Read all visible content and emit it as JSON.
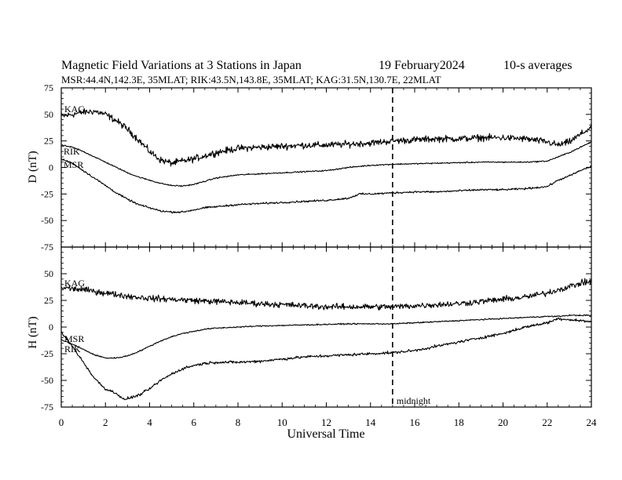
{
  "header": {
    "title": "Magnetic Field Variations at 3 Stations in Japan",
    "date": "19 February2024",
    "averaging": "10-s averages",
    "stations_line": "MSR:44.4N,142.3E, 35MLAT;  RIK:43.5N,143.8E, 35MLAT;  KAG:31.5N,130.7E, 22MLAT"
  },
  "chart_data": [
    {
      "type": "line",
      "panel": "top",
      "ylabel": "D (nT)",
      "ylim": [
        -75,
        75
      ],
      "yticks": [
        75,
        50,
        25,
        0,
        -25,
        -50,
        -75
      ],
      "xlim": [
        0,
        24
      ],
      "grid": false,
      "series": [
        {
          "name": "KAG",
          "noise": 2.2,
          "x": [
            0,
            0.5,
            1,
            1.5,
            2,
            2.5,
            3,
            3.5,
            4,
            4.5,
            5,
            5.5,
            6,
            6.5,
            7,
            8,
            9,
            10,
            11,
            12,
            13,
            14,
            15,
            16,
            17,
            18,
            19,
            20,
            21,
            22,
            22.5,
            23,
            23.5,
            24
          ],
          "y": [
            48,
            50,
            52,
            53,
            50,
            44,
            36,
            26,
            15,
            7,
            4,
            6,
            8,
            11,
            14,
            18,
            19,
            20,
            21,
            21,
            22,
            23,
            25,
            26,
            27,
            27,
            28,
            28,
            27,
            24,
            21,
            24,
            31,
            38
          ]
        },
        {
          "name": "RIK",
          "noise": 0.4,
          "x": [
            0,
            0.5,
            1,
            1.5,
            2,
            2.5,
            3,
            3.5,
            4,
            4.5,
            5,
            5.5,
            6,
            6.5,
            7,
            8,
            9,
            10,
            11,
            12,
            13,
            14,
            15,
            16,
            17,
            18,
            19,
            20,
            21,
            22,
            22.5,
            23,
            23.5,
            24
          ],
          "y": [
            21,
            19,
            15,
            10,
            5,
            0,
            -5,
            -9,
            -12,
            -15,
            -17,
            -17.5,
            -16,
            -13,
            -10,
            -7,
            -6,
            -5,
            -4,
            -3,
            0,
            2,
            3,
            3.5,
            4,
            4.5,
            5,
            5,
            5,
            6,
            10,
            14,
            19,
            24
          ]
        },
        {
          "name": "MSR",
          "noise": 0.6,
          "x": [
            0,
            0.5,
            1,
            1.5,
            2,
            2.5,
            3,
            3.5,
            4,
            4.5,
            5,
            5.5,
            6,
            6.5,
            7,
            8,
            9,
            10,
            11,
            12,
            13,
            13.5,
            14,
            15,
            16,
            17,
            18,
            19,
            20,
            21,
            22,
            22.5,
            23,
            23.5,
            24
          ],
          "y": [
            8,
            4,
            -3,
            -10,
            -17,
            -24,
            -30,
            -35,
            -38,
            -41,
            -42,
            -42,
            -40,
            -38,
            -37,
            -35,
            -34,
            -33,
            -32,
            -31,
            -29,
            -25,
            -25,
            -24,
            -23,
            -23,
            -22,
            -21,
            -21,
            -20,
            -18,
            -12,
            -8,
            -3,
            1
          ]
        }
      ]
    },
    {
      "type": "line",
      "panel": "bottom",
      "ylabel": "H (nT)",
      "ylim": [
        -75,
        75
      ],
      "yticks": [
        50,
        25,
        0,
        -25,
        -50,
        -75
      ],
      "xlim": [
        0,
        24
      ],
      "xticks": [
        0,
        2,
        4,
        6,
        8,
        10,
        12,
        14,
        16,
        18,
        20,
        22,
        24
      ],
      "xlabel": "Universal Time",
      "grid": false,
      "series": [
        {
          "name": "KAG",
          "noise": 2.0,
          "x": [
            0,
            1,
            2,
            3,
            4,
            5,
            6,
            7,
            8,
            9,
            10,
            11,
            12,
            13,
            14,
            15,
            16,
            17,
            18,
            19,
            20,
            21,
            22,
            22.5,
            23,
            23.5,
            24
          ],
          "y": [
            37,
            35,
            32,
            29,
            27,
            26,
            25,
            24,
            23,
            22,
            21,
            20,
            19,
            19,
            19,
            19,
            20,
            21,
            22,
            24,
            26,
            28,
            32,
            35,
            38,
            41,
            43
          ]
        },
        {
          "name": "MSR",
          "noise": 0.4,
          "x": [
            0,
            0.5,
            1,
            1.5,
            2,
            2.5,
            3,
            3.5,
            4,
            4.5,
            5,
            5.5,
            6,
            6.5,
            7,
            8,
            9,
            10,
            11,
            12,
            13,
            14,
            15,
            16,
            17,
            18,
            19,
            20,
            21,
            22,
            22.5,
            23,
            23.5,
            24
          ],
          "y": [
            -12,
            -16,
            -21,
            -26,
            -29,
            -29,
            -27,
            -23,
            -18,
            -13,
            -9,
            -6,
            -4,
            -2,
            -1,
            0,
            1,
            1.5,
            2,
            2.5,
            3,
            3,
            3,
            4,
            5,
            6,
            7,
            8,
            9,
            10,
            10,
            11,
            11,
            11
          ]
        },
        {
          "name": "RIK",
          "noise": 0.9,
          "x": [
            0,
            0.5,
            1,
            1.5,
            2,
            2.5,
            2.8,
            3,
            3.5,
            4,
            4.5,
            5,
            5.5,
            6,
            6.5,
            7,
            8,
            9,
            10,
            11,
            12,
            13,
            14,
            15,
            16,
            17,
            18,
            19,
            20,
            21,
            22,
            22.5,
            23,
            23.5,
            24
          ],
          "y": [
            -5,
            -18,
            -33,
            -48,
            -58,
            -62,
            -68,
            -67,
            -64,
            -58,
            -50,
            -44,
            -39,
            -36,
            -34,
            -33,
            -33,
            -32,
            -30,
            -28,
            -27,
            -26,
            -25,
            -24,
            -22,
            -18,
            -14,
            -10,
            -6,
            0,
            4,
            8,
            7,
            6,
            5
          ]
        }
      ]
    }
  ],
  "annotations": {
    "midnight_label": "midnight",
    "midnight_ut": 15,
    "tick_labels": {
      "x": [
        "0",
        "2",
        "4",
        "6",
        "8",
        "10",
        "12",
        "14",
        "16",
        "18",
        "20",
        "22",
        "24"
      ],
      "top_y": [
        "75",
        "50",
        "25",
        "0",
        "-25",
        "-50",
        "-75"
      ],
      "bottom_y": [
        "50",
        "25",
        "0",
        "-25",
        "-50",
        "-75"
      ]
    }
  }
}
